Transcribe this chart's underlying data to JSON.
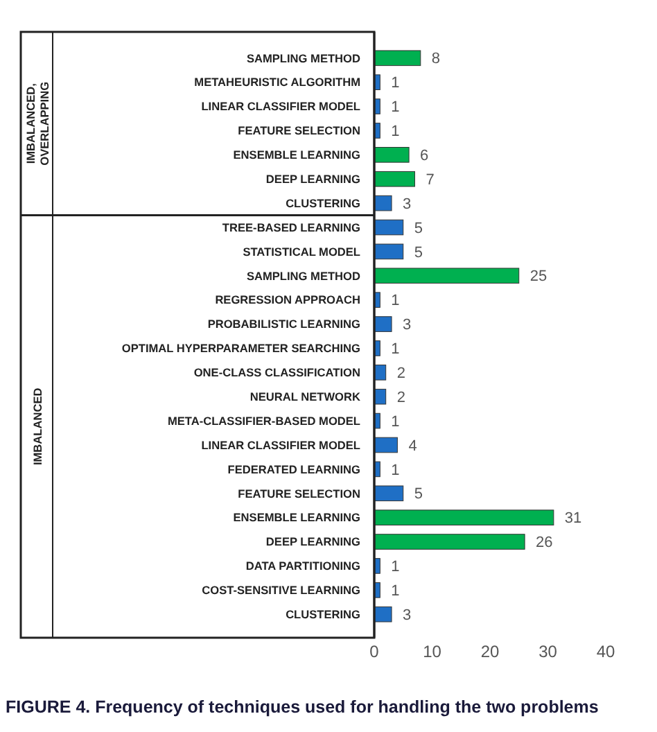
{
  "chart_data": {
    "type": "bar",
    "orientation": "horizontal",
    "title": "FIGURE 4.  Frequency of techniques used for handling the two problems",
    "categories": [
      "SAMPLING METHOD",
      "METAHEURISTIC ALGORITHM",
      "LINEAR CLASSIFIER MODEL",
      "FEATURE SELECTION",
      "ENSEMBLE LEARNING",
      "DEEP LEARNING",
      "CLUSTERING",
      "TREE-BASED LEARNING",
      "STATISTICAL MODEL",
      "SAMPLING METHOD",
      "REGRESSION APPROACH",
      "PROBABILISTIC LEARNING",
      "OPTIMAL HYPERPARAMETER SEARCHING",
      "ONE-CLASS CLASSIFICATION",
      "NEURAL NETWORK",
      "META-CLASSIFIER-BASED MODEL",
      "LINEAR CLASSIFIER MODEL",
      "FEDERATED LEARNING",
      "FEATURE SELECTION",
      "ENSEMBLE LEARNING",
      "DEEP LEARNING",
      "DATA PARTITIONING",
      "COST-SENSITIVE LEARNING",
      "CLUSTERING"
    ],
    "values": [
      8,
      1,
      1,
      1,
      6,
      7,
      3,
      5,
      5,
      25,
      1,
      3,
      1,
      2,
      2,
      1,
      4,
      1,
      5,
      31,
      26,
      1,
      1,
      3
    ],
    "colors": [
      "#00b050",
      "#1f6fc5",
      "#1f6fc5",
      "#1f6fc5",
      "#00b050",
      "#00b050",
      "#1f6fc5",
      "#1f6fc5",
      "#1f6fc5",
      "#00b050",
      "#1f6fc5",
      "#1f6fc5",
      "#1f6fc5",
      "#1f6fc5",
      "#1f6fc5",
      "#1f6fc5",
      "#1f6fc5",
      "#1f6fc5",
      "#1f6fc5",
      "#00b050",
      "#00b050",
      "#1f6fc5",
      "#1f6fc5",
      "#1f6fc5"
    ],
    "xlim": [
      0,
      40
    ],
    "xticks": [
      0,
      10,
      20,
      30,
      40
    ],
    "data_labels": true,
    "annotations": [
      "IMBALANCED, OVERLAPPING",
      "IMBALANCED"
    ]
  }
}
